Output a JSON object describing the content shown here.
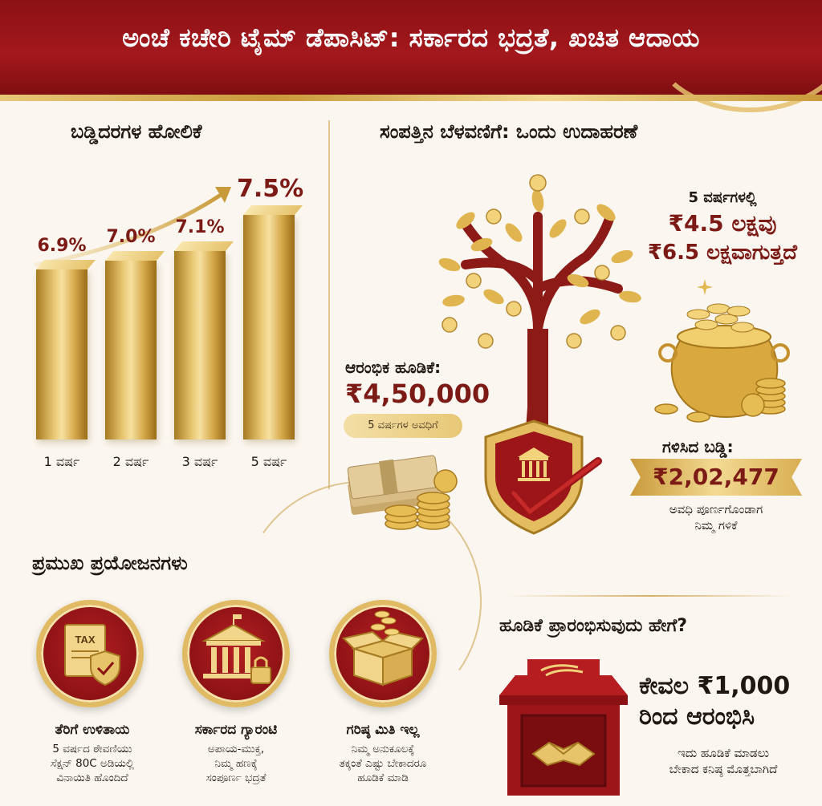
{
  "header": {
    "title": "ಅಂಚೆ ಕಚೇರಿ ಟೈಮ್ ಡೆಪಾಸಿಟ್: ಸರ್ಕಾರದ ಭದ್ರತೆ, ಖಚಿತ ಆದಾಯ"
  },
  "rates": {
    "heading": "ಬಡ್ಡಿದರಗಳ ಹೋಲಿಕೆ",
    "items": [
      {
        "label": "1 ವರ್ಷ",
        "value_text": "6.9%",
        "value": 6.9
      },
      {
        "label": "2 ವರ್ಷ",
        "value_text": "7.0%",
        "value": 7.0
      },
      {
        "label": "3 ವರ್ಷ",
        "value_text": "7.1%",
        "value": 7.1
      },
      {
        "label": "5 ವರ್ಷ",
        "value_text": "7.5%",
        "value": 7.5
      }
    ]
  },
  "growth": {
    "heading": "ಸಂಪತ್ತಿನ ಬೆಳವಣಿಗೆ: ಒಂದು ಉದಾಹರಣೆ",
    "summary_line1": "5 ವರ್ಷಗಳಲ್ಲಿ",
    "summary_line2": "₹4.5 ಲಕ್ಷವು",
    "summary_line3": "₹6.5 ಲಕ್ಷವಾಗುತ್ತದೆ",
    "initial_label": "ಆರಂಭಿಕ ಹೂಡಿಕೆ:",
    "initial_amount": "₹4,50,000",
    "period_pill": "5 ವರ್ಷಗಳ ಅವಧಿಗೆ",
    "interest_label": "ಗಳಿಸಿದ ಬಡ್ಡಿ:",
    "interest_amount": "₹2,02,477",
    "interest_note_line1": "ಅವಧಿ ಪೂರ್ಣಗೊಂಡಾಗ",
    "interest_note_line2": "ನಿಮ್ಮ ಗಳಿಕೆ"
  },
  "benefits": {
    "heading": "ಪ್ರಮುಖ ಪ್ರಯೋಜನಗಳು",
    "items": [
      {
        "icon": "tax-shield-icon",
        "badge": "TAX",
        "title": "ತೆರಿಗೆ ಉಳಿತಾಯ",
        "desc_line1": "5 ವರ್ಷದ ಠೇವಣಿಯು",
        "desc_line2": "ಸೆಕ್ಷನ್ 80C ಅಡಿಯಲ್ಲಿ",
        "desc_line3": "ವಿನಾಯಿತಿ ಹೊಂದಿದೆ"
      },
      {
        "icon": "bank-lock-icon",
        "title": "ಸರ್ಕಾರದ ಗ್ಯಾರಂಟಿ",
        "desc_line1": "ಅಪಾಯ-ಮುಕ್ತ,",
        "desc_line2": "ನಿಮ್ಮ ಹಣಕ್ಕೆ",
        "desc_line3": "ಸಂಪೂರ್ಣ ಭದ್ರತೆ"
      },
      {
        "icon": "open-box-coins-icon",
        "title": "ಗರಿಷ್ಠ ಮಿತಿ ಇಲ್ಲ",
        "desc_line1": "ನಿಮ್ಮ ಅನುಕೂಲಕ್ಕೆ",
        "desc_line2": "ತಕ್ಕಂತೆ ಎಷ್ಟು ಬೇಕಾದರೂ",
        "desc_line3": "ಹೂಡಿಕೆ ಮಾಡಿ"
      }
    ]
  },
  "start": {
    "heading": "ಹೂಡಿಕೆ ಪ್ರಾರಂಭಿಸುವುದು ಹೇಗೆ?",
    "amount_line1": "ಕೇವಲ ₹1,000",
    "amount_line2": "ರಿಂದ ಆರಂಭಿಸಿ",
    "note_line1": "ಇದು ಹೂಡಿಕೆ ಮಾಡಲು",
    "note_line2": "ಬೇಕಾದ ಕನಿಷ್ಠ ಮೊತ್ತಬಾಗಿದೆ"
  },
  "colors": {
    "brand_red": "#8c1115",
    "gold": "#d9ae52",
    "money_red": "#7c1a16"
  }
}
